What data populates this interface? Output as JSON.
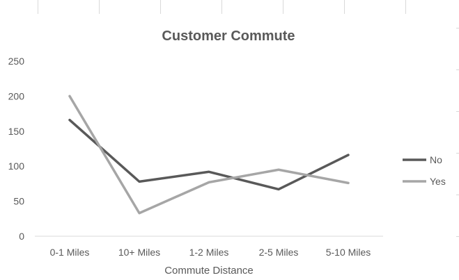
{
  "chart_data": {
    "type": "line",
    "title": "Customer Commute",
    "xlabel": "Commute Distance",
    "ylabel": "",
    "categories": [
      "0-1 Miles",
      "10+ Miles",
      "1-2 Miles",
      "2-5 Miles",
      "5-10 Miles"
    ],
    "series": [
      {
        "name": "No",
        "values": [
          166,
          78,
          92,
          67,
          116
        ],
        "color": "#595959"
      },
      {
        "name": "Yes",
        "values": [
          200,
          33,
          77,
          95,
          76
        ],
        "color": "#a6a6a6"
      }
    ],
    "ylim": [
      0,
      250
    ],
    "yticks": [
      "0",
      "50",
      "100",
      "150",
      "200",
      "250"
    ],
    "grid": false,
    "legend_position": "right"
  },
  "colors": {
    "axis": "#d9d9d9",
    "text": "#595959"
  }
}
